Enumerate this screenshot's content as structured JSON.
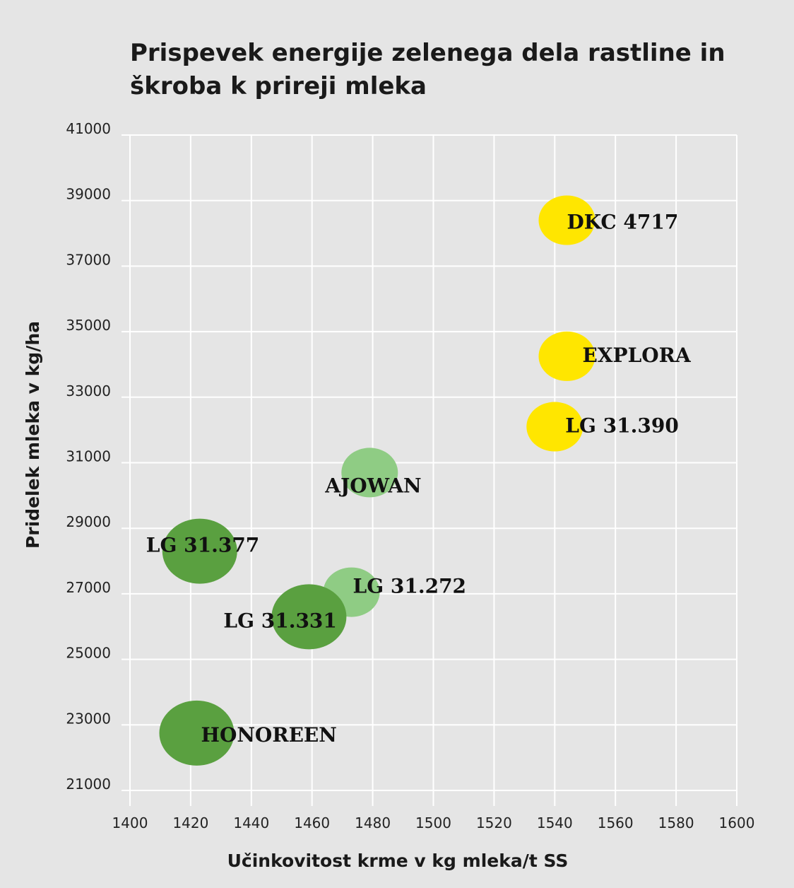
{
  "chart_data": {
    "type": "scatter",
    "title_lines": [
      "Prispevek energije zelenega dela rastline in",
      "škroba k prireji mleka"
    ],
    "xlabel": "Učinkovitost krme v kg mleka/t SS",
    "ylabel": "Pridelek mleka v kg/ha",
    "xlim": [
      1400,
      1600
    ],
    "ylim": [
      21000,
      41000
    ],
    "x_ticks": [
      1400,
      1420,
      1440,
      1460,
      1480,
      1500,
      1520,
      1540,
      1560,
      1580,
      1600
    ],
    "y_ticks": [
      21000,
      23000,
      25000,
      27000,
      29000,
      31000,
      33000,
      35000,
      37000,
      39000,
      41000
    ],
    "grid": "vertical and horizontal",
    "colors": {
      "yellow": "#ffe600",
      "light_green": "#8fcc84",
      "dark_green": "#5aa040"
    },
    "points": [
      {
        "label": "DKC 4717",
        "x": 1544,
        "y": 38400,
        "color": "yellow",
        "size": "small"
      },
      {
        "label": "EXPLORA",
        "x": 1544,
        "y": 34250,
        "color": "yellow",
        "size": "small"
      },
      {
        "label": "LG 31.390",
        "x": 1540,
        "y": 32100,
        "color": "yellow",
        "size": "small"
      },
      {
        "label": "AJOWAN",
        "x": 1479,
        "y": 30700,
        "color": "light_green",
        "size": "small"
      },
      {
        "label": "LG 31.377",
        "x": 1423,
        "y": 28300,
        "color": "dark_green",
        "size": "large"
      },
      {
        "label": "LG 31.272",
        "x": 1473,
        "y": 27050,
        "color": "light_green",
        "size": "small"
      },
      {
        "label": "LG 31.331",
        "x": 1459,
        "y": 26300,
        "color": "dark_green",
        "size": "large"
      },
      {
        "label": "HONOREEN",
        "x": 1422,
        "y": 22750,
        "color": "dark_green",
        "size": "large"
      }
    ]
  }
}
